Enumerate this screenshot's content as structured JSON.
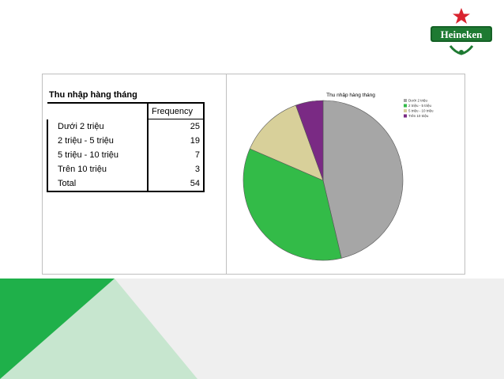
{
  "table": {
    "title": "Thu nhập hàng tháng",
    "column_header": "Frequency",
    "rows": [
      {
        "label": "Dưới 2 triệu",
        "value": "25"
      },
      {
        "label": "2 triệu - 5 triệu",
        "value": "19"
      },
      {
        "label": "5 triệu - 10 triệu",
        "value": "7"
      },
      {
        "label": "Trên 10 triệu",
        "value": "3"
      },
      {
        "label": "Total",
        "value": "54"
      }
    ]
  },
  "logo": {
    "text": "Heineken"
  },
  "chart_data": {
    "type": "pie",
    "title": "Thu nhập hàng tháng",
    "categories": [
      "Dưới 2 triệu",
      "2 triệu - 5 triệu",
      "5 triệu - 10 triệu",
      "Trên 10 triệu"
    ],
    "values": [
      25,
      19,
      7,
      3
    ],
    "colors": [
      "#a6a6a6",
      "#33bb48",
      "#d8d09a",
      "#7a2a84"
    ],
    "legend_position": "top-right"
  },
  "colors": {
    "green_dark": "#1fb04a",
    "green_light": "#c7e6cf",
    "band": "#efefef"
  }
}
